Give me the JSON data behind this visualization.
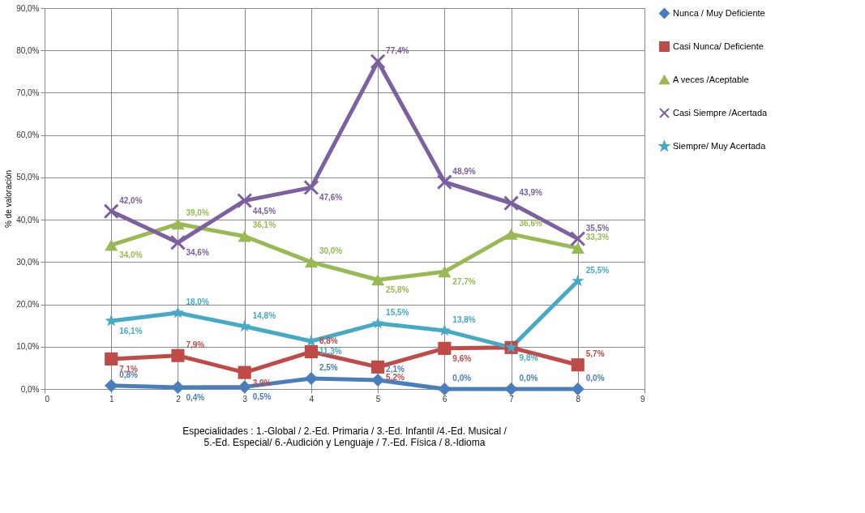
{
  "chart_data": {
    "type": "line",
    "ylabel": "% de valoración",
    "x": [
      1,
      2,
      3,
      4,
      5,
      6,
      7,
      8
    ],
    "xlim": [
      0,
      9
    ],
    "xticks": [
      0,
      1,
      2,
      3,
      4,
      5,
      6,
      7,
      8,
      9
    ],
    "ylim": [
      0,
      90
    ],
    "yticks": [
      {
        "value": 0,
        "label": "0,0%"
      },
      {
        "value": 10,
        "label": "10,0%"
      },
      {
        "value": 20,
        "label": "20,0%"
      },
      {
        "value": 30,
        "label": "30,0%"
      },
      {
        "value": 40,
        "label": "40,0%"
      },
      {
        "value": 50,
        "label": "50,0%"
      },
      {
        "value": 60,
        "label": "60,0%"
      },
      {
        "value": 70,
        "label": "70,0%"
      },
      {
        "value": 80,
        "label": "80,0%"
      },
      {
        "value": 90,
        "label": "90,0%"
      }
    ],
    "grid": true,
    "legend": "right",
    "series": [
      {
        "name": "Nunca / Muy Deficiente",
        "color": "#4a7ebb",
        "marker": "diamond",
        "values": [
          0.8,
          0.4,
          0.5,
          2.5,
          2.1,
          0.0,
          0.0,
          0.0
        ],
        "value_labels": [
          "0,8%",
          "0,4%",
          "0,5%",
          "2,5%",
          "2,1%",
          "0,0%",
          "0,0%",
          "0,0%"
        ]
      },
      {
        "name": "Casi Nunca/ Deficiente",
        "color": "#be4b48",
        "marker": "square",
        "values": [
          7.1,
          7.9,
          3.9,
          8.8,
          5.2,
          9.6,
          9.8,
          5.7
        ],
        "value_labels": [
          "7,1%",
          "7,9%",
          "3,9%",
          "8,8%",
          "5,2%",
          "9,6%",
          null,
          "5,7%"
        ]
      },
      {
        "name": "A veces /Aceptable",
        "color": "#98b954",
        "marker": "triangle",
        "values": [
          34.0,
          39.0,
          36.1,
          30.0,
          25.8,
          27.7,
          36.6,
          33.3
        ],
        "value_labels": [
          "34,0%",
          "39,0%",
          "36,1%",
          "30,0%",
          "25,8%",
          "27,7%",
          "36,6%",
          "33,3%"
        ]
      },
      {
        "name": "Casi Siempre /Acertada",
        "color": "#7d60a0",
        "marker": "cross",
        "values": [
          42.0,
          34.6,
          44.5,
          47.6,
          77.4,
          48.9,
          43.9,
          35.5
        ],
        "value_labels": [
          "42,0%",
          "34,6%",
          "44,5%",
          "47,6%",
          "77,4%",
          "48,9%",
          "43,9%",
          "35,5%"
        ]
      },
      {
        "name": "Siempre/ Muy Acertada",
        "color": "#46aac5",
        "marker": "star",
        "values": [
          16.1,
          18.0,
          14.8,
          11.3,
          15.5,
          13.8,
          9.8,
          25.5
        ],
        "value_labels": [
          "16,1%",
          "18,0%",
          "14,8%",
          "11,3%",
          "15,5%",
          "13,8%",
          "9,8%",
          "25,5%"
        ]
      }
    ],
    "annotations": [
      "Especialidades : 1.-Global / 2.-Ed. Primaria / 3.-Ed. Infantil /4.-Ed. Musical /",
      "5.-Ed. Especial/ 6.-Audición y Lenguaje / 7.-Ed. Física / 8.-Idioma"
    ]
  }
}
